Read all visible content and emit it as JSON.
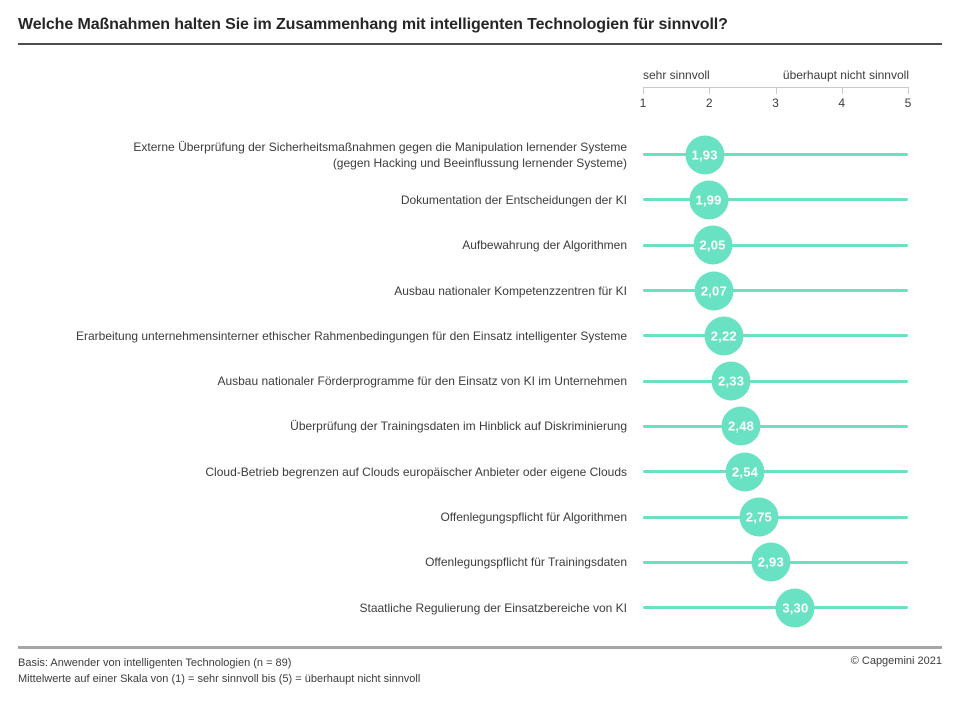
{
  "title": "Welche Maßnahmen halten Sie im Zusammenhang mit intelligenten Technologien für sinnvoll?",
  "scale": {
    "left_label": "sehr sinnvoll",
    "right_label": "überhaupt nicht sinnvoll",
    "min": 1,
    "max": 5,
    "ticks": [
      1,
      2,
      3,
      4,
      5
    ]
  },
  "chart_data": {
    "type": "scatter",
    "variant": "dot-plot-lollipop",
    "title": "Welche Maßnahmen halten Sie im Zusammenhang mit intelligenten Technologien für sinnvoll?",
    "categories": [
      "Externe Überprüfung der Sicherheitsmaßnahmen gegen die Manipulation lernender Systeme\n(gegen Hacking und Beeinflussung lernender Systeme)",
      "Dokumentation der Entscheidungen der KI",
      "Aufbewahrung der Algorithmen",
      "Ausbau nationaler Kompetenzzentren für KI",
      "Erarbeitung unternehmensinterner ethischer Rahmenbedingungen für den Einsatz intelligenter Systeme",
      "Ausbau nationaler Förderprogramme für den Einsatz von KI im Unternehmen",
      "Überprüfung der Trainingsdaten im Hinblick auf Diskriminierung",
      "Cloud-Betrieb begrenzen auf Clouds europäischer Anbieter oder eigene Clouds",
      "Offenlegungspflicht für Algorithmen",
      "Offenlegungspflicht für Trainingsdaten",
      "Staatliche Regulierung der Einsatzbereiche von KI"
    ],
    "values": [
      1.93,
      1.99,
      2.05,
      2.07,
      2.22,
      2.33,
      2.48,
      2.54,
      2.75,
      2.93,
      3.3
    ],
    "value_labels": [
      "1,93",
      "1,99",
      "2,05",
      "2,07",
      "2,22",
      "2,33",
      "2,48",
      "2,54",
      "2,75",
      "2,93",
      "3,30"
    ],
    "xlim": [
      1,
      5
    ],
    "x_ticks": [
      1,
      2,
      3,
      4,
      5
    ],
    "x_axis_left_label": "sehr sinnvoll",
    "x_axis_right_label": "überhaupt nicht sinnvoll",
    "grid": false,
    "legend": false
  },
  "footer": {
    "line1": "Basis: Anwender von intelligenten Technologien (n = 89)",
    "line2": "Mittelwerte auf einer Skala von (1) = sehr sinnvoll bis (5) = überhaupt nicht sinnvoll",
    "copyright": "© Capgemini 2021"
  },
  "colors": {
    "accent": "#68e2c2",
    "title_text": "#262626",
    "label_text": "#3c3c3c",
    "axis_gray": "#c9c9c9",
    "rule_dark": "#4d4d4d",
    "rule_light": "#a6a6a6"
  }
}
